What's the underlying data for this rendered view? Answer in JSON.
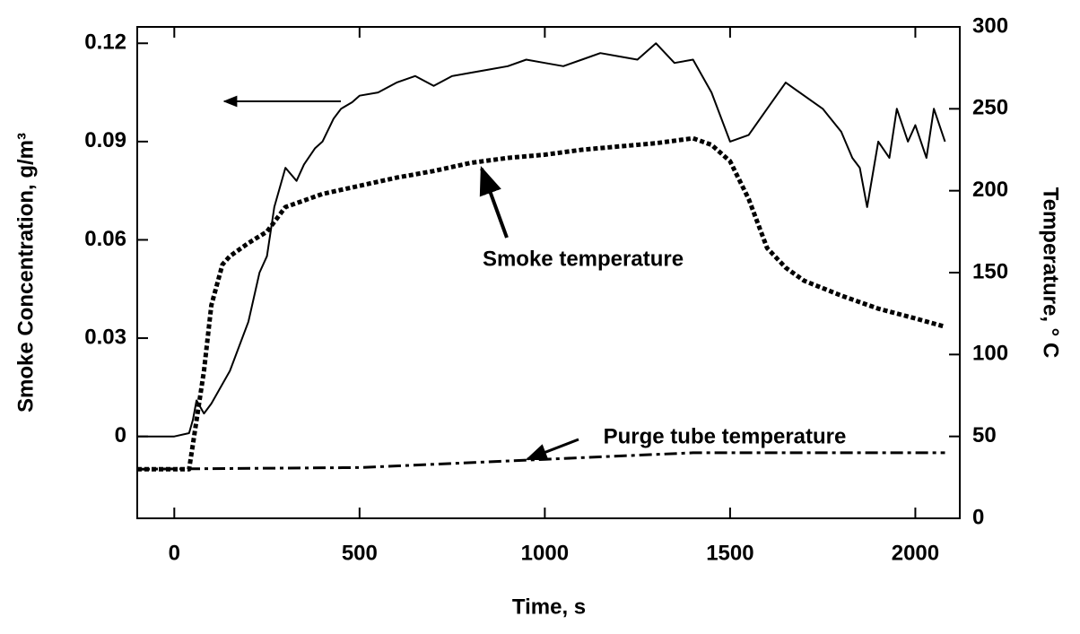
{
  "chart_data": {
    "type": "line",
    "xlabel": "Time, s",
    "ylabel": "Smoke Concentration, g/m³",
    "y2label": "Temperature, ° C",
    "xlim": [
      -100,
      2120
    ],
    "ylim": [
      -0.025,
      0.125
    ],
    "y2lim": [
      0,
      300
    ],
    "xticks": [
      0,
      500,
      1000,
      1500,
      2000
    ],
    "yticks": [
      0,
      0.03,
      0.06,
      0.09,
      0.12
    ],
    "y2ticks": [
      0,
      50,
      100,
      150,
      200,
      250,
      300
    ],
    "series": [
      {
        "color": "#000000",
        "style": "solid",
        "axis": "y",
        "x": [
          -100,
          0,
          40,
          50,
          60,
          80,
          100,
          150,
          200,
          230,
          250,
          270,
          300,
          330,
          350,
          380,
          400,
          430,
          450,
          480,
          500,
          550,
          600,
          650,
          700,
          750,
          800,
          850,
          900,
          950,
          1000,
          1050,
          1100,
          1150,
          1200,
          1250,
          1300,
          1350,
          1400,
          1450,
          1500,
          1550,
          1600,
          1650,
          1700,
          1750,
          1800,
          1830,
          1850,
          1870,
          1900,
          1930,
          1950,
          1980,
          2000,
          2030,
          2050,
          2080
        ],
        "values": [
          0.0,
          0.0,
          0.001,
          0.005,
          0.011,
          0.007,
          0.01,
          0.02,
          0.035,
          0.05,
          0.055,
          0.07,
          0.082,
          0.078,
          0.083,
          0.088,
          0.09,
          0.097,
          0.1,
          0.102,
          0.104,
          0.105,
          0.108,
          0.11,
          0.107,
          0.11,
          0.111,
          0.112,
          0.113,
          0.115,
          0.114,
          0.113,
          0.115,
          0.117,
          0.116,
          0.115,
          0.12,
          0.114,
          0.115,
          0.105,
          0.09,
          0.092,
          0.1,
          0.108,
          0.104,
          0.1,
          0.093,
          0.085,
          0.082,
          0.07,
          0.09,
          0.085,
          0.1,
          0.09,
          0.095,
          0.085,
          0.1,
          0.09
        ]
      },
      {
        "name": "Smoke temperature",
        "color": "#000000",
        "style": "dotted",
        "axis": "y2",
        "x": [
          -100,
          40,
          50,
          80,
          100,
          130,
          150,
          200,
          250,
          300,
          400,
          500,
          600,
          700,
          800,
          900,
          1000,
          1100,
          1200,
          1300,
          1400,
          1450,
          1500,
          1550,
          1600,
          1650,
          1700,
          1800,
          1900,
          2000,
          2080
        ],
        "values": [
          30,
          30,
          45,
          90,
          130,
          155,
          160,
          168,
          175,
          190,
          198,
          203,
          208,
          212,
          217,
          220,
          222,
          225,
          227,
          229,
          232,
          228,
          218,
          195,
          165,
          153,
          145,
          136,
          128,
          122,
          117
        ]
      },
      {
        "name": "Purge tube temperature",
        "color": "#000000",
        "style": "dashdot",
        "axis": "y2",
        "x": [
          -100,
          500,
          1000,
          1400,
          2080
        ],
        "values": [
          30,
          31,
          36,
          40,
          40
        ]
      }
    ]
  }
}
